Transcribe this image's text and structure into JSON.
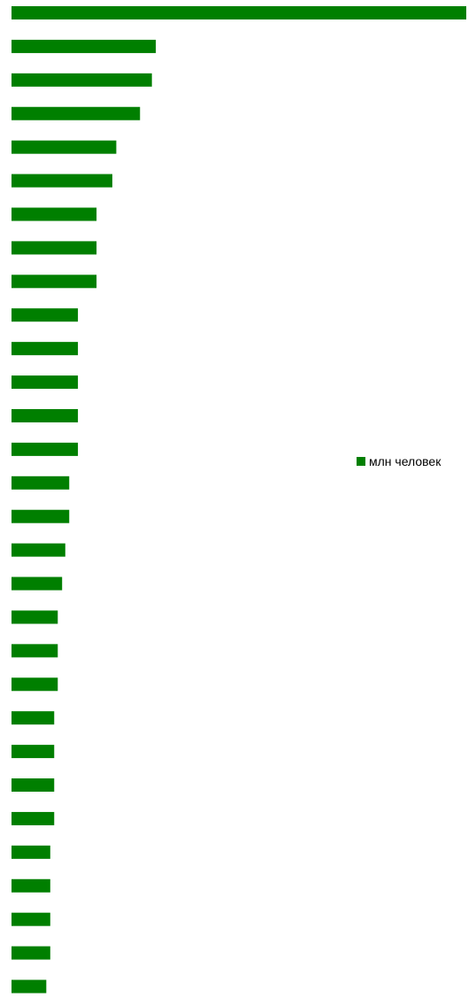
{
  "chart_data": {
    "type": "bar",
    "orientation": "horizontal",
    "series": [
      {
        "name": "млн человек",
        "color": "#007f00",
        "values": [
          115.0,
          36.5,
          35.5,
          32.5,
          26.5,
          25.5,
          21.5,
          21.5,
          21.5,
          16.8,
          16.8,
          16.8,
          16.8,
          16.8,
          14.6,
          14.6,
          13.6,
          12.8,
          11.7,
          11.7,
          11.7,
          10.8,
          10.8,
          10.8,
          10.8,
          9.8,
          9.8,
          9.8,
          9.8,
          8.8
        ]
      }
    ],
    "xlim": [
      0,
      115
    ],
    "grid": false,
    "legend": "right"
  }
}
